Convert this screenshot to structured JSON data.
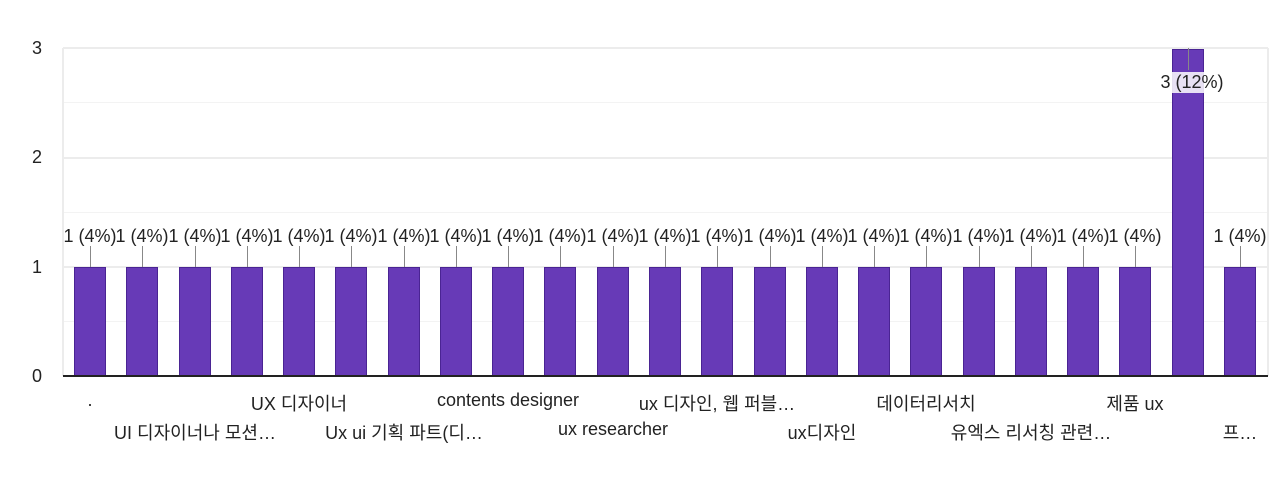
{
  "chart_data": {
    "type": "bar",
    "title": "",
    "xlabel": "",
    "ylabel": "",
    "ylim": [
      0,
      3
    ],
    "yticks": [
      0,
      1,
      2,
      3
    ],
    "grid": true,
    "legend": "none",
    "bar_color": "#673ab7",
    "categories": [
      ".",
      "",
      "UI 디자이너나 모션…",
      "",
      "UX 디자이너",
      "",
      "Ux ui 기획 파트(디…",
      "",
      "contents designer",
      "",
      "ux researcher",
      "",
      "ux 디자인, 웹 퍼블…",
      "",
      "ux디자인",
      "",
      "데이터리서치",
      "",
      "유엑스 리서칭 관련…",
      "",
      "제품 ux",
      "",
      "프…"
    ],
    "values": [
      1,
      1,
      1,
      1,
      1,
      1,
      1,
      1,
      1,
      1,
      1,
      1,
      1,
      1,
      1,
      1,
      1,
      1,
      1,
      1,
      1,
      3,
      1
    ],
    "data_labels": [
      "1 (4%)",
      "1 (4%)",
      "1 (4%)",
      "1 (4%)",
      "1 (4%)",
      "1 (4%)",
      "1 (4%)",
      "1 (4%)",
      "1 (4%)",
      "1 (4%)",
      "1 (4%)",
      "1 (4%)",
      "1 (4%)",
      "1 (4%)",
      "1 (4%)",
      "1 (4%)",
      "1 (4%)",
      "1 (4%)",
      "1 (4%)",
      "1 (4%)",
      "1 (4%)",
      "3 (12%)",
      "1 (4%)"
    ]
  },
  "axis": {
    "y_labels": [
      "0",
      "1",
      "2",
      "3"
    ]
  },
  "x_labels_visible": {
    "row1": [
      ".",
      "UX 디자이너",
      "contents designer",
      "ux 디자인, 웹 퍼블…",
      "데이터리서치",
      "제품 ux"
    ],
    "row2": [
      "UI 디자이너나 모션…",
      "Ux ui 기획 파트(디…",
      "ux researcher",
      "ux디자인",
      "유엑스 리서칭 관련…",
      "프…"
    ]
  }
}
